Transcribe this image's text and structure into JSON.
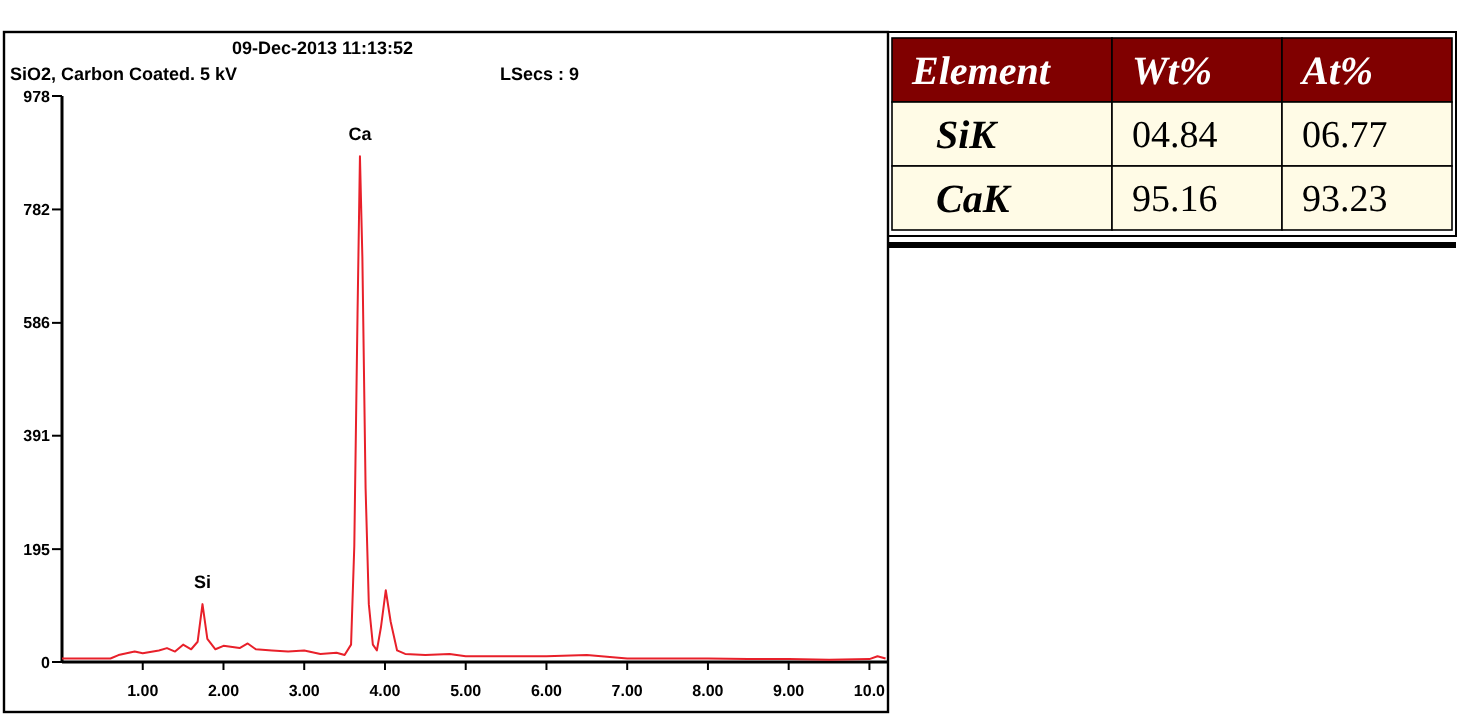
{
  "chart_data": [
    {
      "type": "line",
      "title": "09-Dec-2013 11:13:52",
      "subtitle": "SiO2, Carbon Coated.  5 kV",
      "annotations": [
        "LSecs : 9",
        {
          "text": "Ca",
          "x": 3.69,
          "y": 874
        },
        {
          "text": "Si",
          "x": 1.74,
          "y": 100
        }
      ],
      "x": [
        0,
        0.6,
        0.7,
        0.9,
        1.0,
        1.2,
        1.3,
        1.4,
        1.5,
        1.6,
        1.68,
        1.74,
        1.8,
        1.9,
        2.0,
        2.2,
        2.3,
        2.4,
        2.6,
        2.8,
        3.0,
        3.2,
        3.4,
        3.5,
        3.58,
        3.62,
        3.66,
        3.69,
        3.72,
        3.76,
        3.8,
        3.85,
        3.9,
        3.95,
        4.01,
        4.07,
        4.15,
        4.25,
        4.5,
        4.8,
        5.0,
        5.5,
        6.0,
        6.5,
        7.0,
        7.5,
        8.0,
        8.5,
        9.0,
        9.5,
        10.0,
        10.1,
        10.2
      ],
      "series": [
        {
          "color": "#e8202a",
          "values": [
            6,
            6,
            12,
            18,
            15,
            20,
            24,
            18,
            30,
            22,
            35,
            100,
            40,
            22,
            28,
            24,
            32,
            22,
            20,
            18,
            20,
            14,
            16,
            12,
            30,
            200,
            600,
            874,
            700,
            300,
            100,
            30,
            20,
            60,
            124,
            70,
            20,
            14,
            12,
            14,
            10,
            10,
            10,
            12,
            6,
            6,
            6,
            5,
            5,
            4,
            5,
            10,
            6
          ]
        }
      ],
      "xlim": [
        0,
        10.23
      ],
      "xticks": [
        {
          "value": 1,
          "label": "1.00"
        },
        {
          "value": 2,
          "label": "2.00"
        },
        {
          "value": 3,
          "label": "3.00"
        },
        {
          "value": 4,
          "label": "4.00"
        },
        {
          "value": 5,
          "label": "5.00"
        },
        {
          "value": 6,
          "label": "6.00"
        },
        {
          "value": 7,
          "label": "7.00"
        },
        {
          "value": 8,
          "label": "8.00"
        },
        {
          "value": 9,
          "label": "9.00"
        },
        {
          "value": 10,
          "label": "10.0"
        }
      ],
      "ylim": [
        0,
        978
      ],
      "yticks": [
        0,
        195,
        391,
        586,
        782,
        978
      ],
      "grid": false,
      "marker": "none",
      "line_style": "solid"
    },
    {
      "type": "other",
      "annotations": [
        "Element",
        "Wt%",
        "At%",
        "SiK",
        "04.84",
        "06.77",
        "CaK",
        "95.16",
        "93.23"
      ]
    }
  ]
}
